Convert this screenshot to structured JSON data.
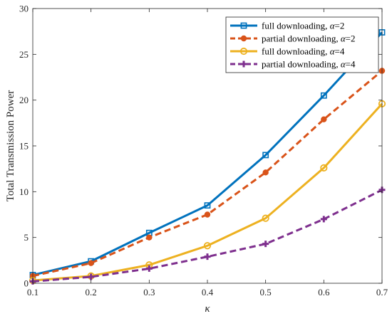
{
  "chart_data": {
    "type": "line",
    "title": "",
    "xlabel": "κ",
    "ylabel": "Total Transmission Power",
    "x": [
      0.1,
      0.2,
      0.3,
      0.4,
      0.5,
      0.6,
      0.7
    ],
    "x_tick_labels": [
      "0.1",
      "0.2",
      "0.3",
      "0.4",
      "0.5",
      "0.6",
      "0.7"
    ],
    "y_tick_labels": [
      "0",
      "5",
      "10",
      "15",
      "20",
      "25",
      "30"
    ],
    "xlim": [
      0.1,
      0.7
    ],
    "ylim": [
      0,
      30
    ],
    "grid": false,
    "legend_position": "top-right",
    "series": [
      {
        "name_prefix": "full downloading, ",
        "name_alpha": "α",
        "name_suffix": "=2",
        "values": [
          0.9,
          2.4,
          5.5,
          8.5,
          14.0,
          20.5,
          27.4
        ],
        "color": "#0072BD",
        "line_style": "solid",
        "marker": "square"
      },
      {
        "name_prefix": "partial downloading, ",
        "name_alpha": "α",
        "name_suffix": "=2",
        "values": [
          0.8,
          2.2,
          5.0,
          7.5,
          12.1,
          17.9,
          23.2
        ],
        "color": "#D95319",
        "line_style": "dashed",
        "marker": "filled-circle"
      },
      {
        "name_prefix": "full downloading, ",
        "name_alpha": "α",
        "name_suffix": "=4",
        "values": [
          0.3,
          0.8,
          2.0,
          4.1,
          7.1,
          12.6,
          19.6
        ],
        "color": "#EDB120",
        "line_style": "solid",
        "marker": "circle"
      },
      {
        "name_prefix": "partial downloading, ",
        "name_alpha": "α",
        "name_suffix": "=4",
        "values": [
          0.2,
          0.7,
          1.6,
          2.9,
          4.3,
          7.0,
          10.2
        ],
        "color": "#7E2F8E",
        "line_style": "dashed",
        "marker": "plus"
      }
    ]
  }
}
